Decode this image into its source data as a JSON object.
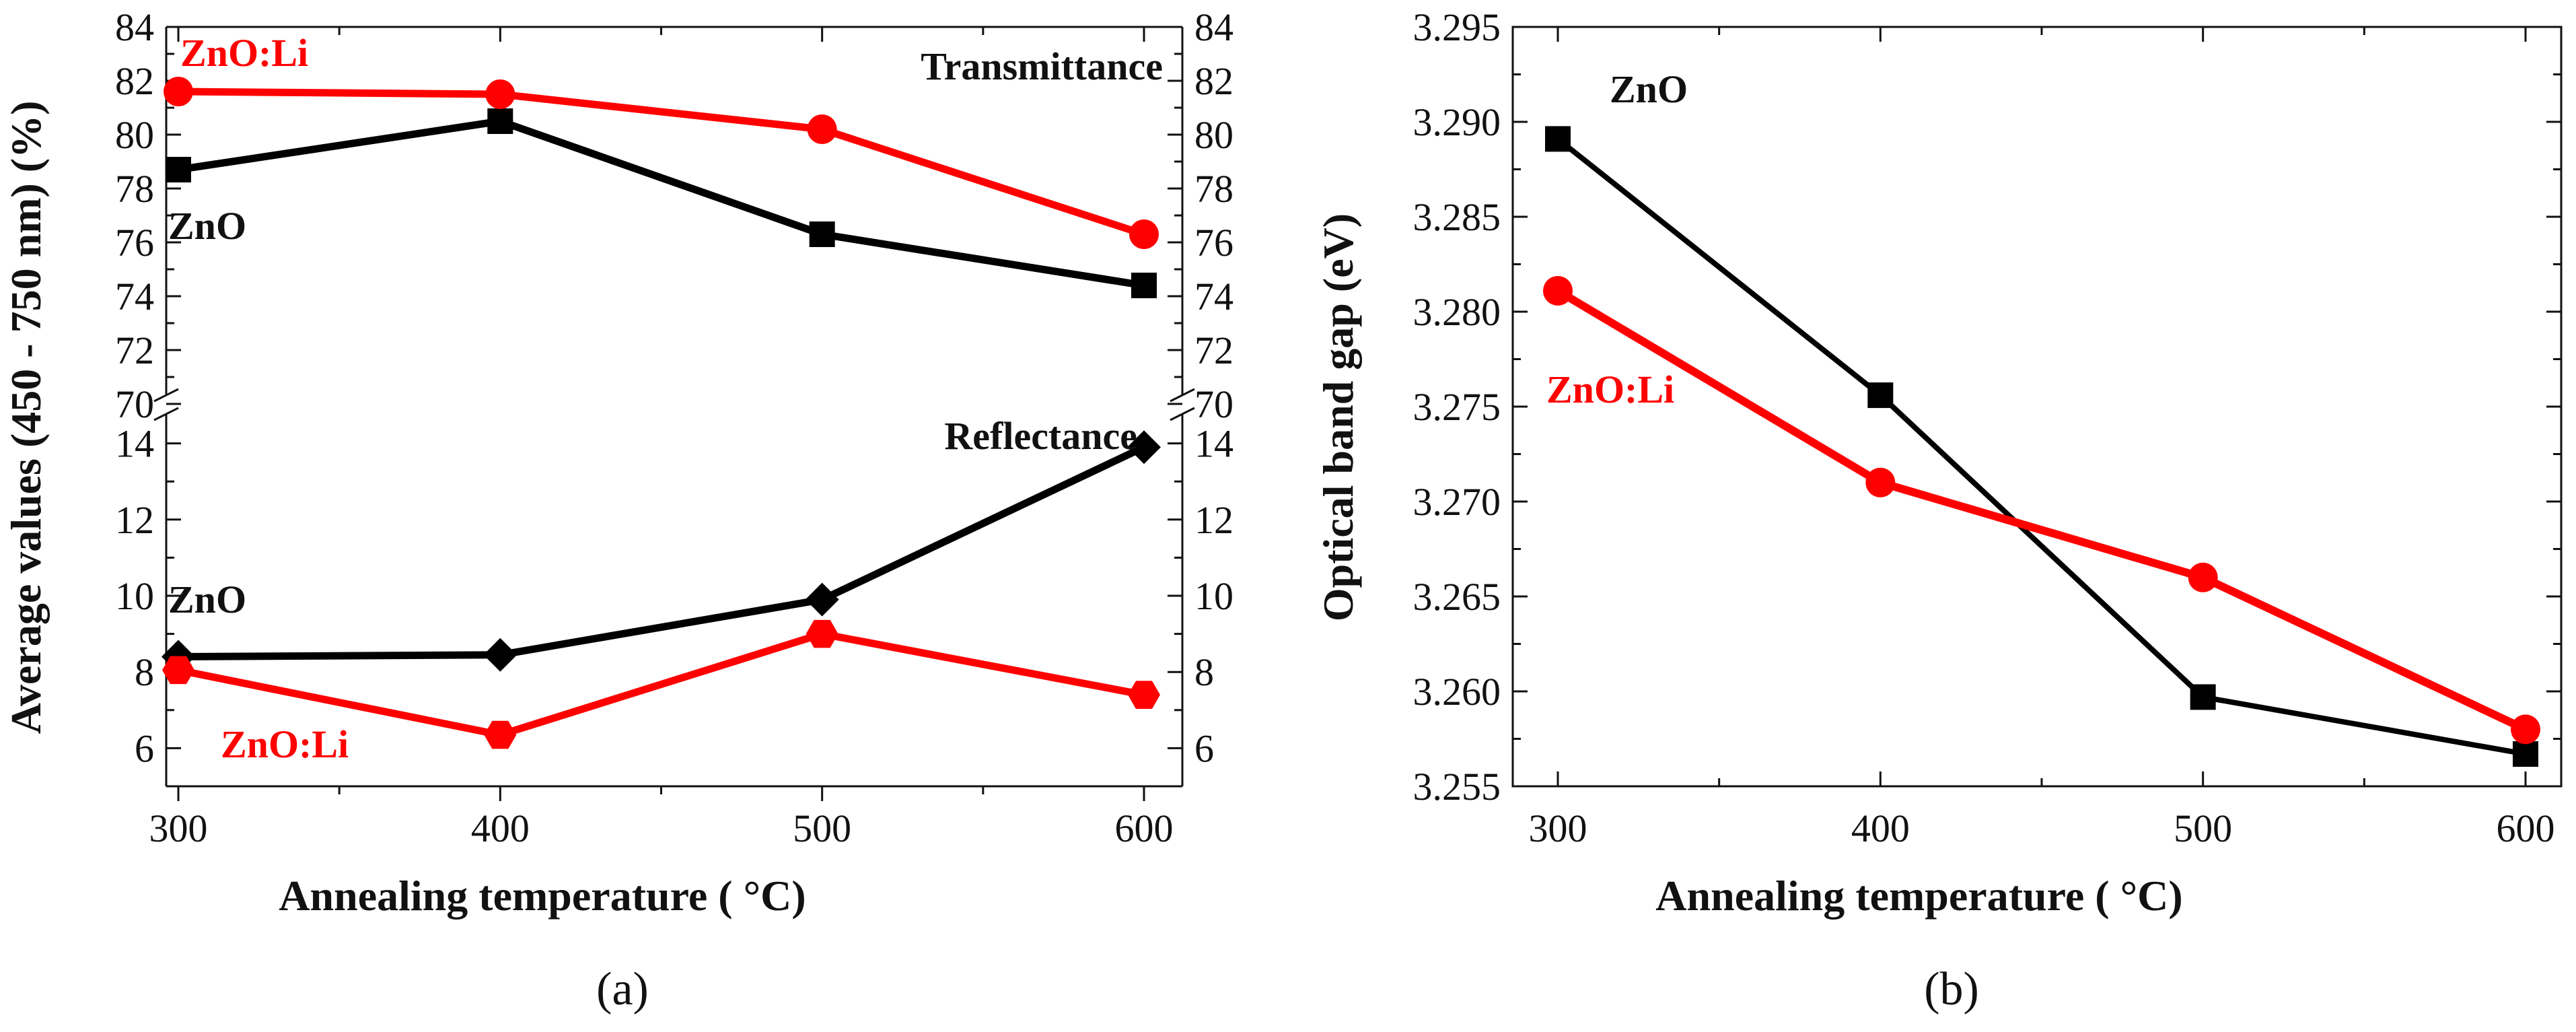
{
  "chart_data": [
    {
      "type": "line",
      "panel_label": "(a)",
      "xlabel": "Annealing temperature ( °C)",
      "ylabel": "Average values (450 - 750 nm) (%)",
      "x": [
        300,
        400,
        500,
        600
      ],
      "xticks": [
        "300",
        "400",
        "500",
        "600"
      ],
      "axis_break": true,
      "upper_ylim": [
        70,
        84
      ],
      "upper_yticks": [
        "70",
        "72",
        "74",
        "76",
        "78",
        "80",
        "82",
        "84"
      ],
      "lower_ylim": [
        5,
        15
      ],
      "lower_yticks": [
        "6",
        "8",
        "10",
        "12",
        "14"
      ],
      "right_axis_mirrors_left": true,
      "groups": [
        {
          "name": "Transmittance",
          "series": [
            {
              "name": "ZnO",
              "marker": "square",
              "color": "#000000",
              "values": [
                78.7,
                80.5,
                76.3,
                74.4
              ]
            },
            {
              "name": "ZnO:Li",
              "marker": "circle",
              "color": "#ff0000",
              "values": [
                81.6,
                81.5,
                80.2,
                76.3
              ]
            }
          ]
        },
        {
          "name": "Reflectance",
          "series": [
            {
              "name": "ZnO",
              "marker": "diamond",
              "color": "#000000",
              "values": [
                8.4,
                8.45,
                9.9,
                13.9
              ]
            },
            {
              "name": "ZnO:Li",
              "marker": "hexagon",
              "color": "#ff0000",
              "values": [
                8.05,
                6.35,
                9.0,
                7.4
              ]
            }
          ]
        }
      ],
      "annotations": {
        "transmittance": "Transmittance",
        "reflectance": "Reflectance",
        "t_znoli": "ZnO:Li",
        "t_zno": "ZnO",
        "r_zno": "ZnO",
        "r_znoli": "ZnO:Li"
      }
    },
    {
      "type": "line",
      "panel_label": "(b)",
      "xlabel": "Annealing temperature ( °C)",
      "ylabel": "Optical band gap (eV)",
      "x": [
        300,
        400,
        500,
        600
      ],
      "xticks": [
        "300",
        "400",
        "500",
        "600"
      ],
      "ylim": [
        3.255,
        3.295
      ],
      "yticks": [
        "3.255",
        "3.260",
        "3.265",
        "3.270",
        "3.275",
        "3.280",
        "3.285",
        "3.290",
        "3.295"
      ],
      "series": [
        {
          "name": "ZnO",
          "marker": "square",
          "color": "#000000",
          "values": [
            3.2891,
            3.2756,
            3.2597,
            3.2567
          ]
        },
        {
          "name": "ZnO:Li",
          "marker": "circle",
          "color": "#ff0000",
          "values": [
            3.2811,
            3.271,
            3.266,
            3.258
          ]
        }
      ],
      "annotations": {
        "zno": "ZnO",
        "znoli": "ZnO:Li"
      }
    }
  ]
}
